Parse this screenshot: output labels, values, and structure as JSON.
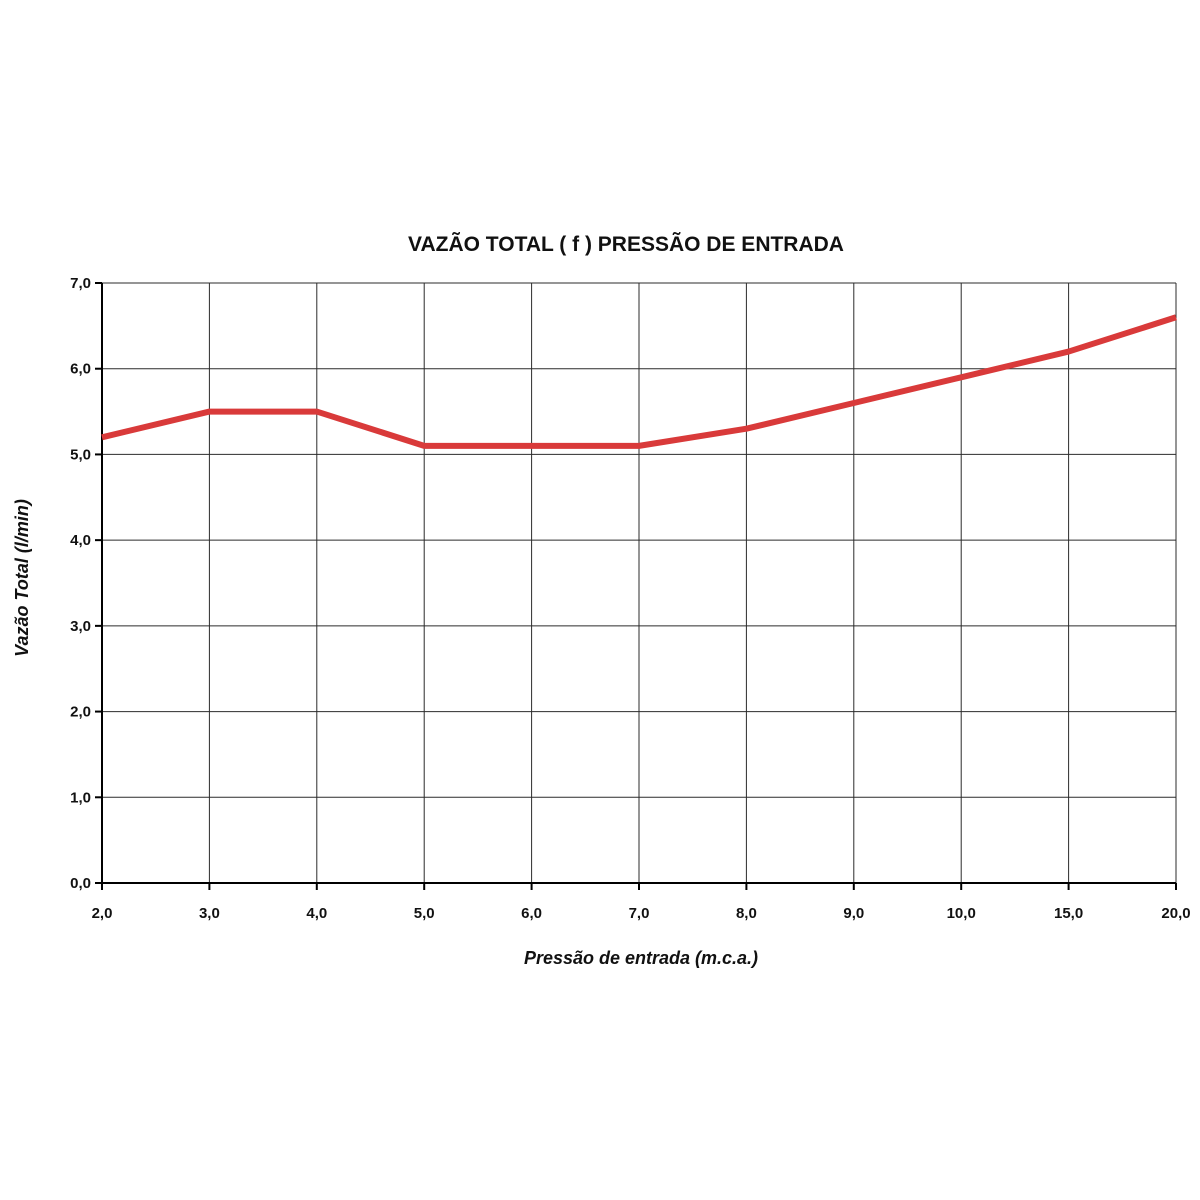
{
  "chart_data": {
    "type": "line",
    "title": "VAZÃO TOTAL ( f ) PRESSÃO DE ENTRADA",
    "xlabel": "Pressão de entrada (m.c.a.)",
    "ylabel": "Vazão Total (l/min)",
    "categories": [
      "2,0",
      "3,0",
      "4,0",
      "5,0",
      "6,0",
      "7,0",
      "8,0",
      "9,0",
      "10,0",
      "15,0",
      "20,0"
    ],
    "y_ticks": [
      "0,0",
      "1,0",
      "2,0",
      "3,0",
      "4,0",
      "5,0",
      "6,0",
      "7,0"
    ],
    "ylim": [
      0,
      7
    ],
    "grid": true,
    "series": [
      {
        "values": [
          5.2,
          5.5,
          5.5,
          5.1,
          5.1,
          5.1,
          5.3,
          5.6,
          5.9,
          6.2,
          6.6
        ],
        "color": "#d93a3a"
      }
    ]
  }
}
